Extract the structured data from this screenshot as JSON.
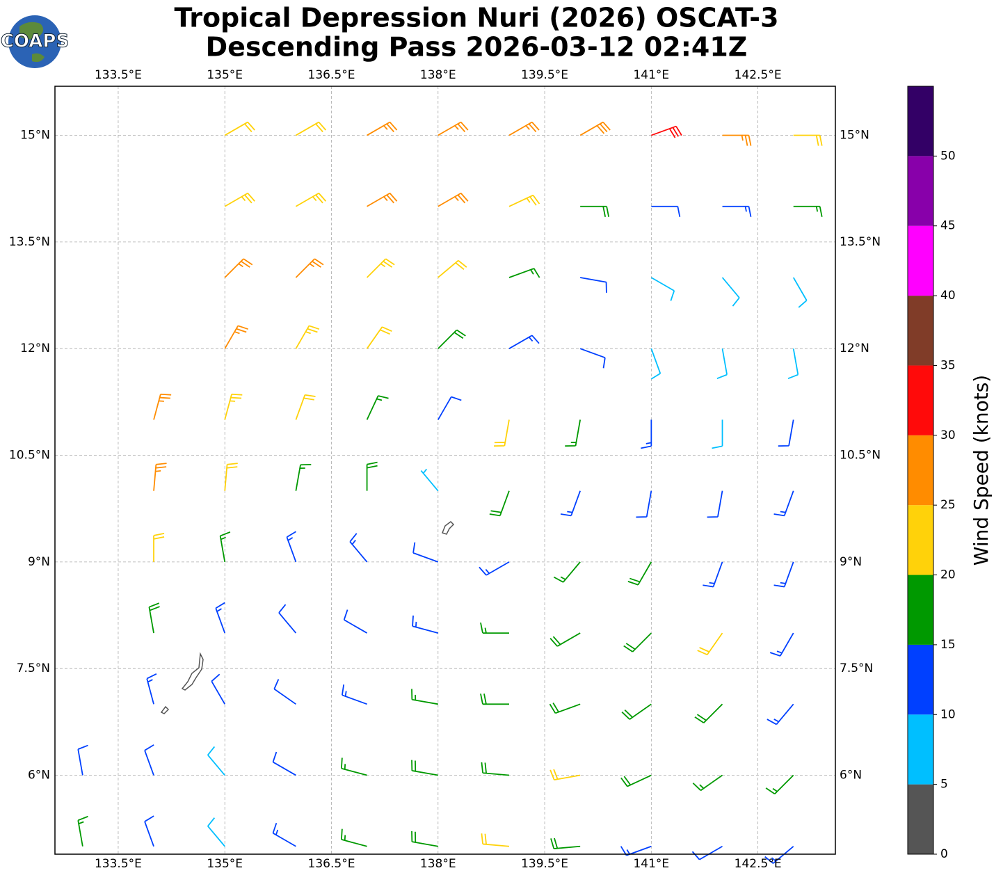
{
  "header": {
    "logo": "COAPS",
    "title": [
      "Tropical Depression Nuri (2026) OSCAT-3",
      "Descending Pass 2026-03-12 02:41Z"
    ]
  },
  "map": {
    "lonlim": [
      132.61,
      143.59
    ],
    "latlim": [
      4.89,
      15.69
    ],
    "grid": true,
    "lonticks": [
      {
        "value": 133.5,
        "label": "133.5°E"
      },
      {
        "value": 135,
        "label": "135°E"
      },
      {
        "value": 136.5,
        "label": "136.5°E"
      },
      {
        "value": 138,
        "label": "138°E"
      },
      {
        "value": 139.5,
        "label": "139.5°E"
      },
      {
        "value": 141,
        "label": "141°E"
      },
      {
        "value": 142.5,
        "label": "142.5°E"
      }
    ],
    "latticks": [
      {
        "value": 6,
        "label": "6°N"
      },
      {
        "value": 7.5,
        "label": "7.5°N"
      },
      {
        "value": 9,
        "label": "9°N"
      },
      {
        "value": 10.5,
        "label": "10.5°N"
      },
      {
        "value": 12,
        "label": "12°N"
      },
      {
        "value": 13.5,
        "label": "13.5°N"
      },
      {
        "value": 15,
        "label": "15°N"
      }
    ],
    "wind": {
      "lon": [
        135,
        136,
        137,
        138,
        139,
        140,
        141,
        142,
        143,
        135,
        136,
        137,
        138,
        139,
        140,
        141,
        142,
        143,
        135,
        136,
        137,
        138,
        139,
        140,
        141,
        142,
        143,
        135,
        136,
        137,
        138,
        139,
        140,
        141,
        142,
        143,
        134,
        135,
        136,
        137,
        138,
        139,
        140,
        141,
        142,
        143,
        134,
        135,
        136,
        137,
        138,
        139,
        140,
        141,
        142,
        143,
        134,
        135,
        136,
        137,
        138,
        139,
        140,
        141,
        142,
        143,
        134,
        135,
        136,
        137,
        138,
        139,
        140,
        141,
        142,
        143,
        134,
        135,
        136,
        137,
        138,
        139,
        140,
        141,
        142,
        143,
        133,
        134,
        135,
        136,
        137,
        138,
        139,
        140,
        141,
        142,
        143,
        133,
        134,
        135,
        136,
        137,
        138,
        139,
        140,
        141,
        142,
        143
      ],
      "lat": [
        15,
        15,
        15,
        15,
        15,
        15,
        15,
        15,
        15,
        14,
        14,
        14,
        14,
        14,
        14,
        14,
        14,
        14,
        13,
        13,
        13,
        13,
        13,
        13,
        13,
        13,
        13,
        12,
        12,
        12,
        12,
        12,
        12,
        12,
        12,
        12,
        11,
        11,
        11,
        11,
        11,
        11,
        11,
        11,
        11,
        11,
        10,
        10,
        10,
        10,
        10,
        10,
        10,
        10,
        10,
        10,
        9,
        9,
        9,
        9,
        9,
        9,
        9,
        9,
        9,
        9,
        8,
        8,
        8,
        8,
        8,
        8,
        8,
        8,
        8,
        8,
        7,
        7,
        7,
        7,
        7,
        7,
        7,
        7,
        7,
        7,
        6,
        6,
        6,
        6,
        6,
        6,
        6,
        6,
        6,
        6,
        6,
        5,
        5,
        5,
        5,
        5,
        5,
        5,
        5,
        5,
        5,
        5
      ],
      "speed": [
        22,
        22,
        27,
        27,
        27,
        28,
        32,
        27,
        22,
        23,
        24,
        26,
        26,
        23,
        18,
        12,
        13,
        17,
        26,
        26,
        23,
        22,
        17,
        12,
        8,
        8,
        9,
        27,
        24,
        22,
        18,
        13,
        12,
        8,
        9,
        9,
        26,
        24,
        22,
        17,
        12,
        22,
        17,
        13,
        9,
        11,
        26,
        22,
        17,
        18,
        7,
        18,
        13,
        12,
        12,
        13,
        22,
        17,
        14,
        13,
        12,
        13,
        17,
        18,
        14,
        13,
        18,
        13,
        12,
        12,
        13,
        17,
        18,
        18,
        22,
        13,
        13,
        12,
        12,
        13,
        17,
        18,
        18,
        18,
        18,
        14,
        12,
        12,
        8,
        12,
        17,
        18,
        18,
        22,
        18,
        17,
        17,
        17,
        12,
        8,
        13,
        17,
        18,
        21,
        18,
        13,
        12,
        14
      ],
      "direction": [
        60,
        60,
        60,
        60,
        60,
        60,
        70,
        90,
        90,
        60,
        60,
        60,
        60,
        65,
        90,
        90,
        90,
        90,
        45,
        45,
        45,
        50,
        70,
        100,
        120,
        140,
        150,
        30,
        30,
        35,
        45,
        60,
        110,
        160,
        170,
        170,
        15,
        15,
        20,
        25,
        30,
        190,
        190,
        180,
        180,
        190,
        5,
        5,
        10,
        0,
        320,
        200,
        200,
        190,
        190,
        200,
        360,
        350,
        340,
        320,
        290,
        240,
        220,
        210,
        200,
        200,
        350,
        340,
        320,
        300,
        285,
        270,
        240,
        225,
        215,
        210,
        345,
        330,
        305,
        290,
        280,
        270,
        250,
        235,
        225,
        220,
        350,
        340,
        320,
        300,
        285,
        280,
        275,
        260,
        245,
        235,
        225,
        350,
        340,
        320,
        300,
        285,
        280,
        275,
        265,
        250,
        240,
        230
      ]
    }
  },
  "colorbar": {
    "label": "Wind Speed (knots)",
    "lim": [
      0,
      55
    ],
    "ticks": [
      0,
      5,
      10,
      15,
      20,
      25,
      30,
      35,
      40,
      45,
      50
    ],
    "colors": [
      "#555555",
      "#00bfff",
      "#0040ff",
      "#009900",
      "#ffd20a",
      "#ff8c00",
      "#ff0a0a",
      "#803c28",
      "#ff00ff",
      "#8800aa",
      "#330066"
    ]
  }
}
